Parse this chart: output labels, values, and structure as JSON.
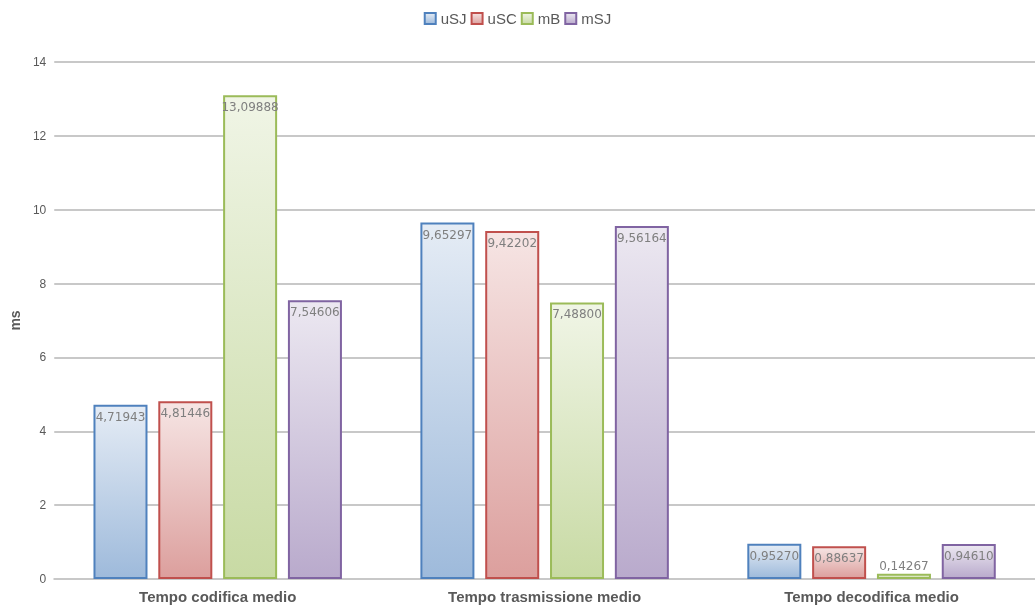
{
  "chart_data": {
    "type": "bar",
    "ylabel": "ms",
    "categories": [
      "Tempo codifica medio",
      "Tempo trasmissione medio",
      "Tempo decodifica medio"
    ],
    "series": [
      {
        "name": "uSJ",
        "color": "#4f81bd",
        "values": [
          4.71943,
          9.65297,
          0.9527
        ],
        "value_labels": [
          "4,71943",
          "9,65297",
          "0,95270"
        ]
      },
      {
        "name": "uSC",
        "color": "#c0504d",
        "values": [
          4.81446,
          9.42202,
          0.88637
        ],
        "value_labels": [
          "4,81446",
          "9,42202",
          "0,88637"
        ]
      },
      {
        "name": "mB",
        "color": "#9bbb59",
        "values": [
          13.09888,
          7.488,
          0.14267
        ],
        "value_labels": [
          "13,09888",
          "7,48800",
          "0,14267"
        ]
      },
      {
        "name": "mSJ",
        "color": "#8064a2",
        "values": [
          7.54606,
          9.56164,
          0.9461
        ],
        "value_labels": [
          "7,54606",
          "9,56164",
          "0,94610"
        ]
      }
    ],
    "ylim": [
      0,
      14
    ],
    "yticks": [
      0,
      2,
      4,
      6,
      8,
      10,
      12,
      14
    ],
    "grid": "y",
    "legend": "top"
  }
}
